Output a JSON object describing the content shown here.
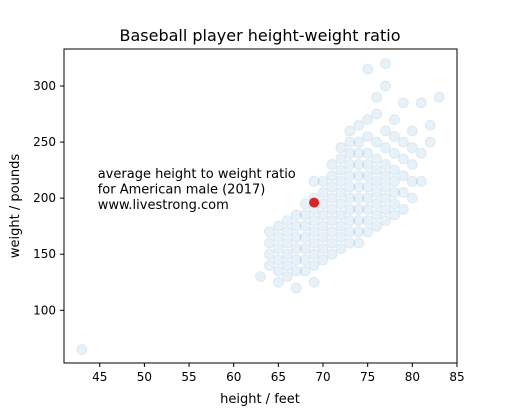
{
  "chart_data": {
    "type": "scatter",
    "title": "Baseball player height-weight ratio",
    "xlabel": "height / feet",
    "ylabel": "weight / pounds",
    "xlim": [
      41,
      85
    ],
    "ylim": [
      53,
      333
    ],
    "xticks": [
      45,
      50,
      55,
      60,
      65,
      70,
      75,
      80,
      85
    ],
    "yticks": [
      100,
      150,
      200,
      250,
      300
    ],
    "grid": false,
    "colors": {
      "points": "#1f77b4",
      "highlight": "#d62728"
    },
    "series": [
      {
        "points": [
          [
            43,
            65
          ],
          [
            63,
            130
          ],
          [
            64,
            140
          ],
          [
            64,
            150
          ],
          [
            64,
            160
          ],
          [
            64,
            170
          ],
          [
            65,
            125
          ],
          [
            65,
            135
          ],
          [
            65,
            145
          ],
          [
            65,
            155
          ],
          [
            65,
            165
          ],
          [
            65,
            175
          ],
          [
            66,
            130
          ],
          [
            66,
            140
          ],
          [
            66,
            150
          ],
          [
            66,
            160
          ],
          [
            66,
            170
          ],
          [
            66,
            180
          ],
          [
            67,
            120
          ],
          [
            67,
            135
          ],
          [
            67,
            145
          ],
          [
            67,
            155
          ],
          [
            67,
            165
          ],
          [
            67,
            175
          ],
          [
            67,
            185
          ],
          [
            68,
            135
          ],
          [
            68,
            145
          ],
          [
            68,
            155
          ],
          [
            68,
            165
          ],
          [
            68,
            175
          ],
          [
            68,
            185
          ],
          [
            68,
            195
          ],
          [
            69,
            125
          ],
          [
            69,
            140
          ],
          [
            69,
            150
          ],
          [
            69,
            160
          ],
          [
            69,
            170
          ],
          [
            69,
            180
          ],
          [
            69,
            190
          ],
          [
            69,
            200
          ],
          [
            69,
            215
          ],
          [
            70,
            145
          ],
          [
            70,
            155
          ],
          [
            70,
            165
          ],
          [
            70,
            175
          ],
          [
            70,
            185
          ],
          [
            70,
            195
          ],
          [
            70,
            205
          ],
          [
            70,
            215
          ],
          [
            71,
            150
          ],
          [
            71,
            160
          ],
          [
            71,
            170
          ],
          [
            71,
            180
          ],
          [
            71,
            190
          ],
          [
            71,
            200
          ],
          [
            71,
            210
          ],
          [
            71,
            220
          ],
          [
            71,
            230
          ],
          [
            72,
            155
          ],
          [
            72,
            165
          ],
          [
            72,
            175
          ],
          [
            72,
            185
          ],
          [
            72,
            195
          ],
          [
            72,
            205
          ],
          [
            72,
            215
          ],
          [
            72,
            225
          ],
          [
            72,
            235
          ],
          [
            72,
            245
          ],
          [
            73,
            160
          ],
          [
            73,
            170
          ],
          [
            73,
            180
          ],
          [
            73,
            190
          ],
          [
            73,
            200
          ],
          [
            73,
            210
          ],
          [
            73,
            220
          ],
          [
            73,
            230
          ],
          [
            73,
            240
          ],
          [
            73,
            250
          ],
          [
            73,
            260
          ],
          [
            74,
            160
          ],
          [
            74,
            170
          ],
          [
            74,
            180
          ],
          [
            74,
            190
          ],
          [
            74,
            200
          ],
          [
            74,
            210
          ],
          [
            74,
            220
          ],
          [
            74,
            230
          ],
          [
            74,
            240
          ],
          [
            74,
            250
          ],
          [
            74,
            265
          ],
          [
            75,
            170
          ],
          [
            75,
            180
          ],
          [
            75,
            190
          ],
          [
            75,
            200
          ],
          [
            75,
            210
          ],
          [
            75,
            220
          ],
          [
            75,
            230
          ],
          [
            75,
            240
          ],
          [
            75,
            255
          ],
          [
            75,
            270
          ],
          [
            75,
            315
          ],
          [
            76,
            175
          ],
          [
            76,
            185
          ],
          [
            76,
            195
          ],
          [
            76,
            205
          ],
          [
            76,
            215
          ],
          [
            76,
            225
          ],
          [
            76,
            235
          ],
          [
            76,
            250
          ],
          [
            76,
            275
          ],
          [
            76,
            290
          ],
          [
            77,
            180
          ],
          [
            77,
            190
          ],
          [
            77,
            200
          ],
          [
            77,
            210
          ],
          [
            77,
            220
          ],
          [
            77,
            230
          ],
          [
            77,
            245
          ],
          [
            77,
            260
          ],
          [
            77,
            300
          ],
          [
            77,
            320
          ],
          [
            78,
            185
          ],
          [
            78,
            195
          ],
          [
            78,
            205
          ],
          [
            78,
            215
          ],
          [
            78,
            225
          ],
          [
            78,
            240
          ],
          [
            78,
            255
          ],
          [
            78,
            270
          ],
          [
            79,
            190
          ],
          [
            79,
            205
          ],
          [
            79,
            220
          ],
          [
            79,
            235
          ],
          [
            79,
            250
          ],
          [
            79,
            285
          ],
          [
            80,
            200
          ],
          [
            80,
            215
          ],
          [
            80,
            230
          ],
          [
            80,
            245
          ],
          [
            80,
            260
          ],
          [
            81,
            215
          ],
          [
            81,
            240
          ],
          [
            81,
            285
          ],
          [
            82,
            250
          ],
          [
            82,
            265
          ],
          [
            83,
            290
          ]
        ]
      }
    ],
    "highlight": {
      "x": 69,
      "y": 196
    },
    "annotation": {
      "lines": [
        "average height to weight ratio",
        "for American male (2017)",
        " www.livestrong.com"
      ],
      "x": 45,
      "y": 210
    }
  }
}
